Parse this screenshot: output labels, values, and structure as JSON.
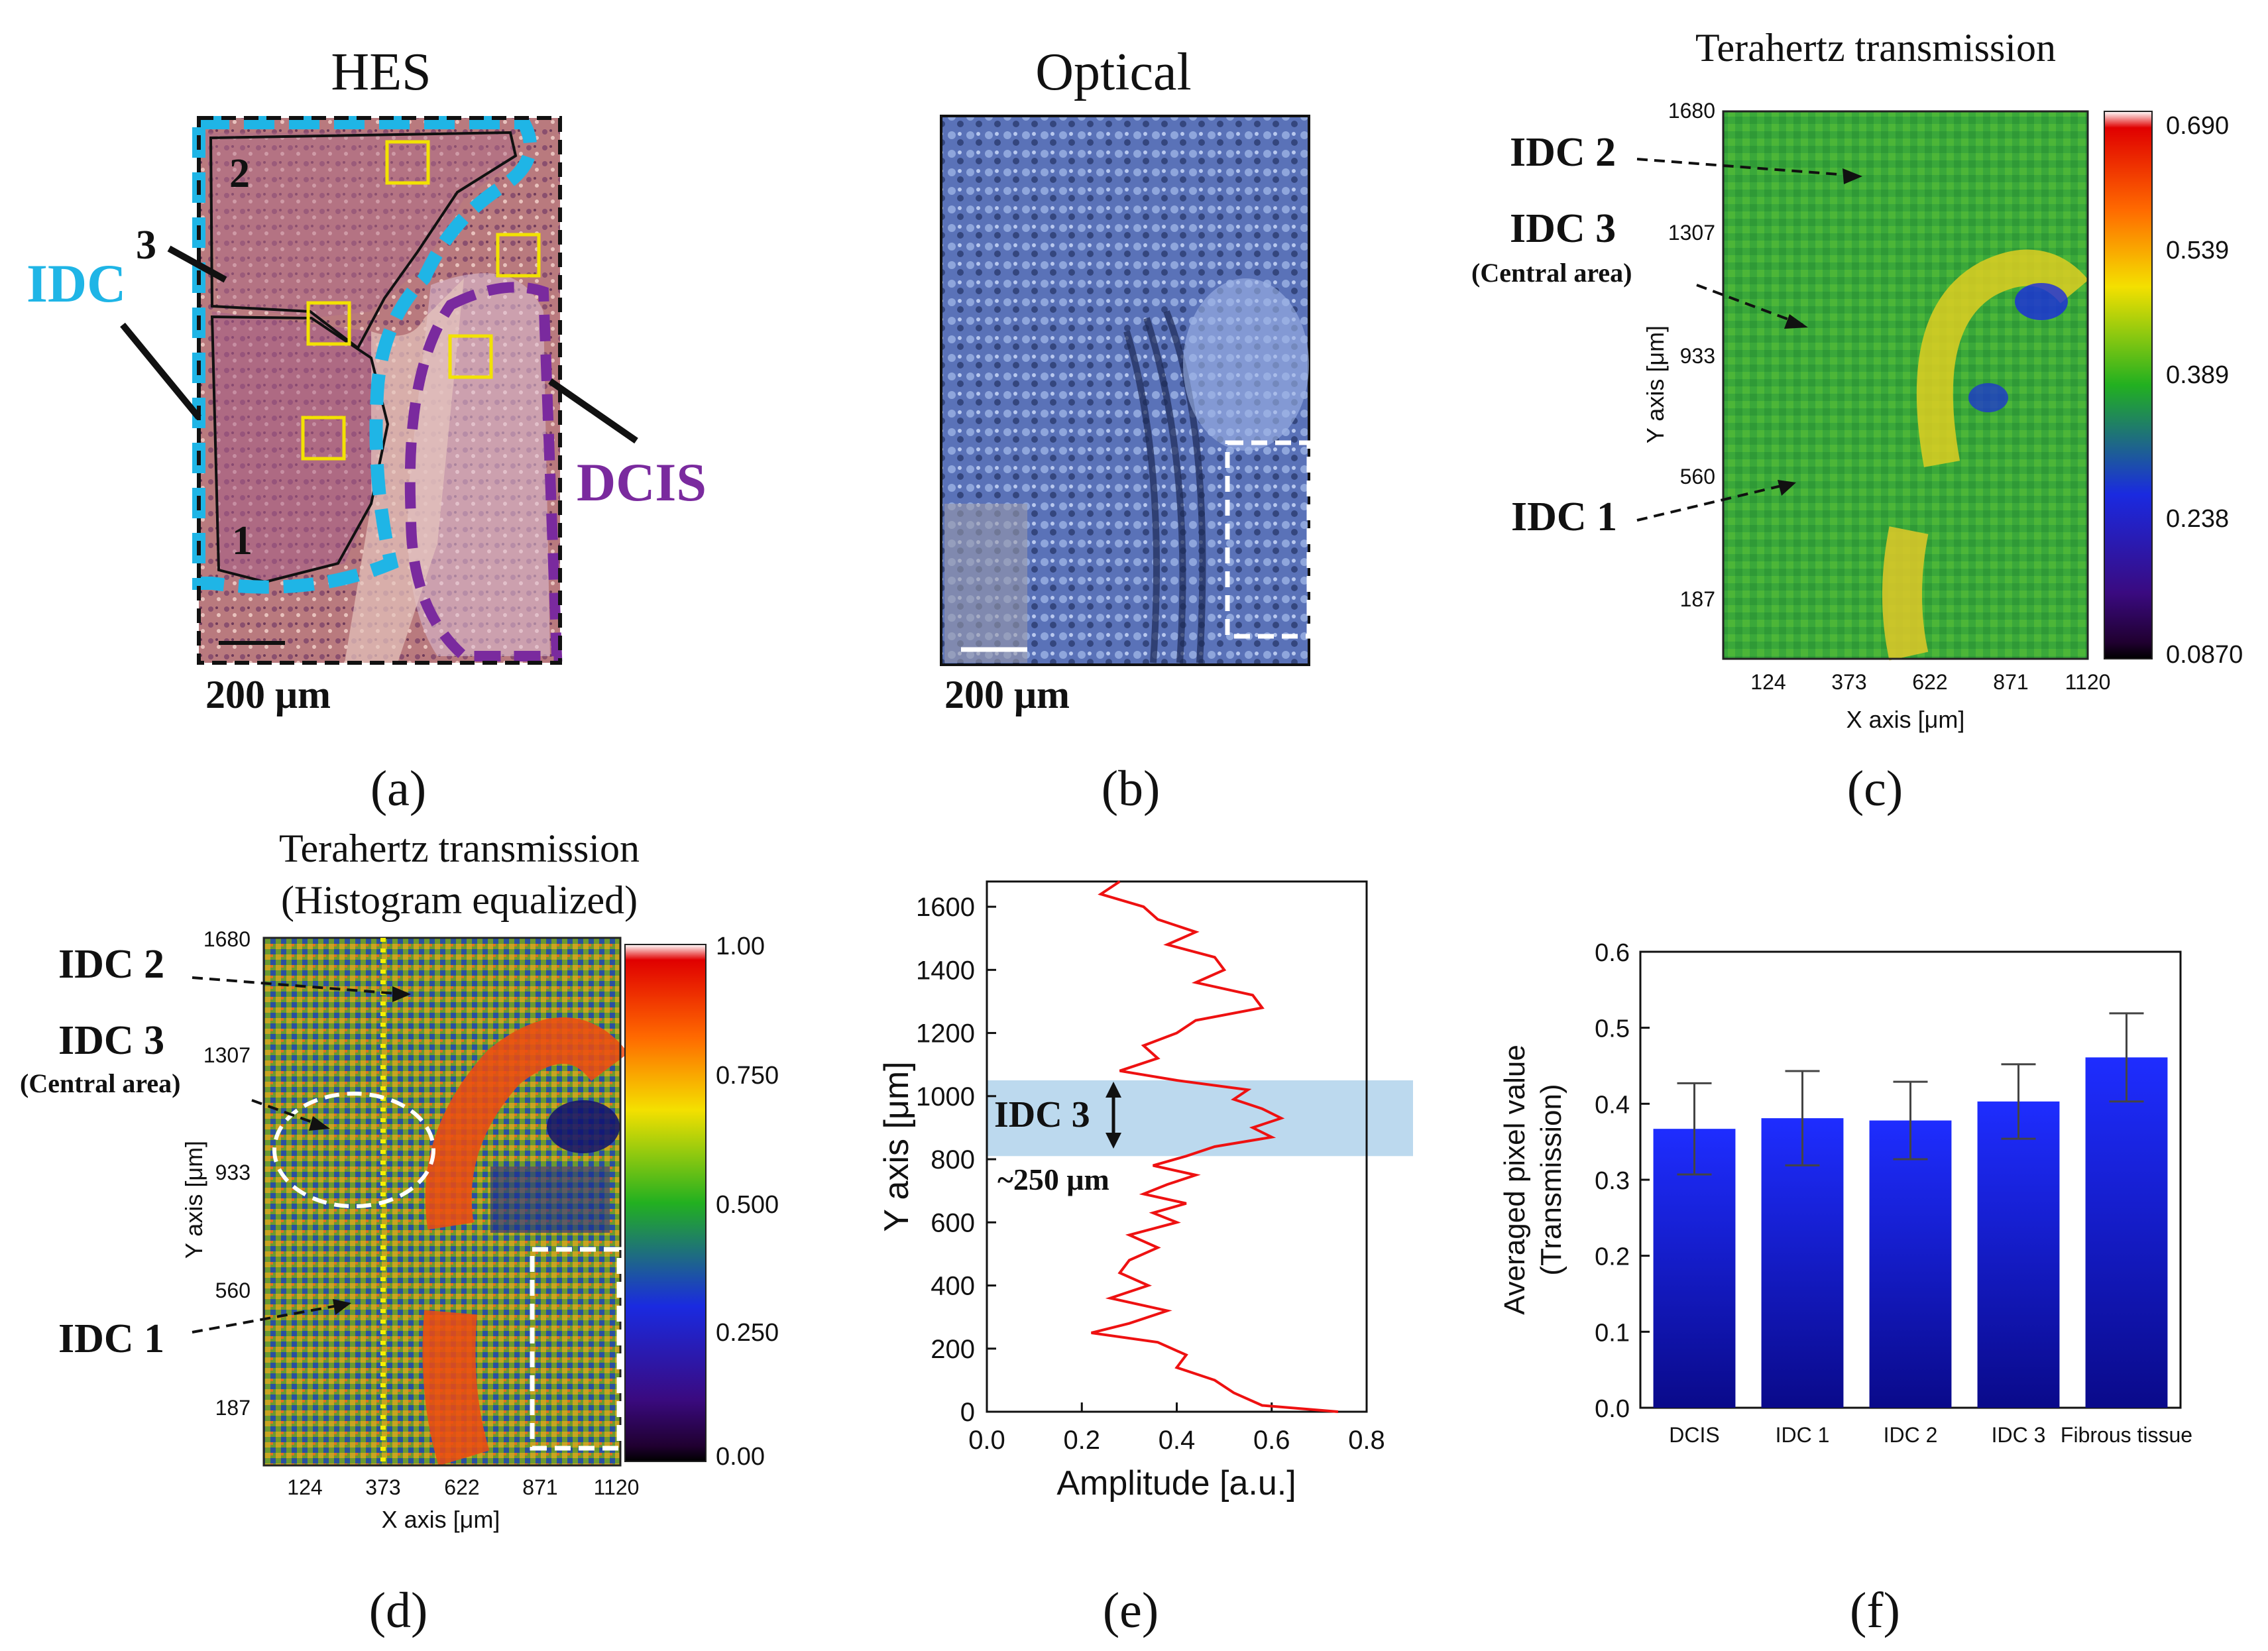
{
  "colors": {
    "idc_outline": "#1fb5e6",
    "dcis_outline": "#7a2a9e",
    "roi_box": "#f2e200",
    "bar_top": "#1e2dff",
    "bar_bottom": "#0a0a8a",
    "profile_line": "#ee1111",
    "band": "#bcd9ee"
  },
  "panel_a": {
    "title": "HES",
    "label": "(a)",
    "scale": "200 μm",
    "idc": "IDC",
    "dcis": "DCIS",
    "region1": "1",
    "region2": "2",
    "region3": "3"
  },
  "panel_b": {
    "title": "Optical",
    "label": "(b)",
    "scale": "200 μm"
  },
  "panel_c": {
    "title": "Terahertz transmission",
    "label": "(c)",
    "xlabel": "X axis [μm]",
    "ylabel": "Y axis [μm]",
    "xticks": [
      "124",
      "373",
      "622",
      "871",
      "1120"
    ],
    "yticks": [
      "1680",
      "1307",
      "933",
      "560",
      "187"
    ],
    "colorbar": [
      "0.690",
      "0.539",
      "0.389",
      "0.238",
      "0.0870"
    ],
    "idc2": "IDC 2",
    "idc3": "IDC 3",
    "central": "(Central area)",
    "idc1": "IDC 1"
  },
  "panel_d": {
    "title_line1": "Terahertz transmission",
    "title_line2": "(Histogram equalized)",
    "label": "(d)",
    "xlabel": "X axis [μm]",
    "ylabel": "Y axis [μm]",
    "xticks": [
      "124",
      "373",
      "622",
      "871",
      "1120"
    ],
    "yticks": [
      "1680",
      "1307",
      "933",
      "560",
      "187"
    ],
    "colorbar": [
      "1.00",
      "0.750",
      "0.500",
      "0.250",
      "0.00"
    ],
    "idc2": "IDC 2",
    "idc3": "IDC 3",
    "central": "(Central area)",
    "idc1": "IDC 1"
  },
  "chart_data": [
    {
      "type": "line",
      "panel": "(e)",
      "xlabel": "Amplitude [a.u.]",
      "ylabel": "Y axis [μm]",
      "xlim": [
        0.0,
        0.8
      ],
      "ylim": [
        0,
        1680
      ],
      "xticks": [
        "0.0",
        "0.2",
        "0.4",
        "0.6",
        "0.8"
      ],
      "yticks": [
        "0",
        "200",
        "400",
        "600",
        "800",
        "1000",
        "1200",
        "1400",
        "1600"
      ],
      "band": [
        810,
        1050
      ],
      "band_label": "IDC 3",
      "width_label": "~250 μm",
      "series": [
        {
          "name": "profile",
          "y": [
            1680,
            1640,
            1600,
            1560,
            1520,
            1480,
            1440,
            1400,
            1360,
            1320,
            1280,
            1240,
            1200,
            1160,
            1120,
            1080,
            1050,
            1020,
            990,
            960,
            930,
            900,
            870,
            840,
            810,
            780,
            750,
            720,
            690,
            660,
            630,
            600,
            560,
            520,
            480,
            440,
            400,
            360,
            320,
            280,
            250,
            220,
            180,
            140,
            100,
            60,
            20,
            0
          ],
          "values": [
            0.28,
            0.24,
            0.33,
            0.36,
            0.44,
            0.38,
            0.48,
            0.5,
            0.44,
            0.56,
            0.58,
            0.44,
            0.4,
            0.33,
            0.36,
            0.28,
            0.4,
            0.55,
            0.52,
            0.58,
            0.62,
            0.56,
            0.6,
            0.48,
            0.42,
            0.35,
            0.44,
            0.38,
            0.33,
            0.42,
            0.35,
            0.4,
            0.3,
            0.36,
            0.3,
            0.28,
            0.34,
            0.26,
            0.38,
            0.3,
            0.22,
            0.36,
            0.42,
            0.4,
            0.48,
            0.52,
            0.58,
            0.74
          ]
        }
      ]
    },
    {
      "type": "bar",
      "panel": "(f)",
      "ylabel_line1": "Averaged pixel value",
      "ylabel_line2": "(Transmission)",
      "ylim": [
        0.0,
        0.6
      ],
      "yticks": [
        "0.0",
        "0.1",
        "0.2",
        "0.3",
        "0.4",
        "0.5",
        "0.6"
      ],
      "categories": [
        "DCIS",
        "IDC 1",
        "IDC 2",
        "IDC 3",
        "Fibrous tissue"
      ],
      "values": [
        0.367,
        0.381,
        0.378,
        0.403,
        0.461
      ],
      "errors": [
        0.06,
        0.062,
        0.051,
        0.049,
        0.058
      ]
    }
  ]
}
